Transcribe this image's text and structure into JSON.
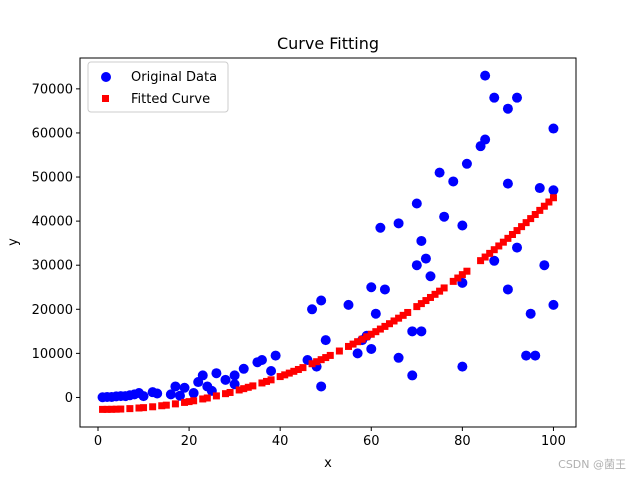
{
  "chart_data": {
    "type": "scatter",
    "title": "Curve Fitting",
    "xlabel": "x",
    "ylabel": "y",
    "xlim": [
      -3.95,
      104.95
    ],
    "ylim": [
      -6700,
      77000
    ],
    "xticks": [
      0,
      20,
      40,
      60,
      80,
      100
    ],
    "yticks": [
      0,
      10000,
      20000,
      30000,
      40000,
      50000,
      60000,
      70000
    ],
    "grid": false,
    "legend_position": "upper-left",
    "legend": [
      {
        "name": "Original Data",
        "color": "#0000ff",
        "marker": "circle"
      },
      {
        "name": "Fitted Curve",
        "color": "#ff0000",
        "marker": "square"
      }
    ],
    "series": [
      {
        "name": "Original Data",
        "color": "#0000ff",
        "marker": "circle",
        "points": [
          [
            1,
            50
          ],
          [
            2,
            100
          ],
          [
            3,
            100
          ],
          [
            4,
            250
          ],
          [
            5,
            300
          ],
          [
            6,
            300
          ],
          [
            7,
            500
          ],
          [
            8,
            700
          ],
          [
            9,
            1000
          ],
          [
            10,
            300
          ],
          [
            12,
            1200
          ],
          [
            13,
            900
          ],
          [
            16,
            700
          ],
          [
            17,
            2500
          ],
          [
            18,
            400
          ],
          [
            19,
            2200
          ],
          [
            21,
            1000
          ],
          [
            22,
            3500
          ],
          [
            23,
            5000
          ],
          [
            24,
            2500
          ],
          [
            25,
            1500
          ],
          [
            26,
            5500
          ],
          [
            28,
            4000
          ],
          [
            30,
            3000
          ],
          [
            30,
            5000
          ],
          [
            32,
            6500
          ],
          [
            35,
            8000
          ],
          [
            36,
            8500
          ],
          [
            38,
            6000
          ],
          [
            39,
            9500
          ],
          [
            46,
            8500
          ],
          [
            47,
            20000
          ],
          [
            48,
            7000
          ],
          [
            49,
            2500
          ],
          [
            49,
            22000
          ],
          [
            50,
            13000
          ],
          [
            55,
            21000
          ],
          [
            57,
            10000
          ],
          [
            58,
            13000
          ],
          [
            59,
            14000
          ],
          [
            60,
            25000
          ],
          [
            60,
            11000
          ],
          [
            61,
            19000
          ],
          [
            62,
            38500
          ],
          [
            63,
            24500
          ],
          [
            66,
            39500
          ],
          [
            66,
            9000
          ],
          [
            69,
            15000
          ],
          [
            69,
            5000
          ],
          [
            70,
            44000
          ],
          [
            70,
            30000
          ],
          [
            71,
            35500
          ],
          [
            71,
            15000
          ],
          [
            72,
            31500
          ],
          [
            73,
            27500
          ],
          [
            75,
            51000
          ],
          [
            76,
            41000
          ],
          [
            78,
            49000
          ],
          [
            80,
            26000
          ],
          [
            80,
            39000
          ],
          [
            80,
            7000
          ],
          [
            81,
            53000
          ],
          [
            84,
            57000
          ],
          [
            85,
            73000
          ],
          [
            85,
            58500
          ],
          [
            87,
            68000
          ],
          [
            87,
            31000
          ],
          [
            90,
            65500
          ],
          [
            90,
            48500
          ],
          [
            90,
            24500
          ],
          [
            92,
            68000
          ],
          [
            92,
            34000
          ],
          [
            94,
            9500
          ],
          [
            95,
            19000
          ],
          [
            96,
            9500
          ],
          [
            97,
            47500
          ],
          [
            98,
            30000
          ],
          [
            100,
            61000
          ],
          [
            100,
            21000
          ],
          [
            100,
            47000
          ]
        ]
      },
      {
        "name": "Fitted Curve",
        "color": "#ff0000",
        "marker": "square",
        "fit": {
          "a": 4.9,
          "b": -10,
          "c": -2700
        },
        "x": [
          1,
          2,
          3,
          4,
          5,
          7,
          9,
          10,
          12,
          14,
          15,
          17,
          19,
          20,
          21,
          23,
          24,
          26,
          28,
          29,
          31,
          32,
          33,
          34,
          36,
          37,
          38,
          40,
          41,
          42,
          43,
          44,
          45,
          47,
          48,
          49,
          50,
          51,
          53,
          55,
          56,
          57,
          58,
          59,
          60,
          61,
          62,
          63,
          64,
          65,
          66,
          67,
          68,
          70,
          71,
          72,
          73,
          74,
          75,
          76,
          78,
          79,
          80,
          81,
          84,
          85,
          86,
          87,
          88,
          89,
          90,
          91,
          92,
          93,
          94,
          95,
          96,
          97,
          98,
          99,
          100
        ]
      }
    ]
  },
  "watermark": "CSDN @菌王"
}
